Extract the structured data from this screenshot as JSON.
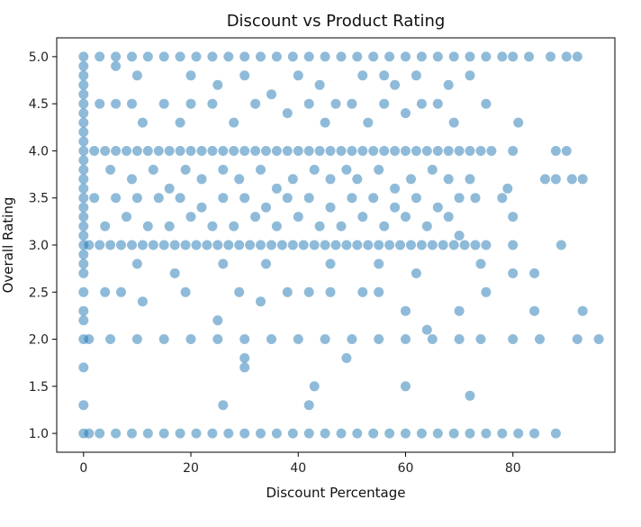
{
  "chart_data": {
    "type": "scatter",
    "title": "Discount vs Product Rating",
    "xlabel": "Discount Percentage",
    "ylabel": "Overall Rating",
    "xlim": [
      -5,
      99
    ],
    "ylim": [
      0.8,
      5.2
    ],
    "xticks": [
      0,
      20,
      40,
      60,
      80
    ],
    "yticks": [
      1.0,
      1.5,
      2.0,
      2.5,
      3.0,
      3.5,
      4.0,
      4.5,
      5.0
    ],
    "grid": false,
    "legend": "none",
    "marker_color": "#1f77b4",
    "marker_alpha": 0.5,
    "points": [
      [
        0,
        5.0
      ],
      [
        3,
        5.0
      ],
      [
        6,
        5.0
      ],
      [
        9,
        5.0
      ],
      [
        12,
        5.0
      ],
      [
        15,
        5.0
      ],
      [
        18,
        5.0
      ],
      [
        21,
        5.0
      ],
      [
        24,
        5.0
      ],
      [
        27,
        5.0
      ],
      [
        30,
        5.0
      ],
      [
        33,
        5.0
      ],
      [
        36,
        5.0
      ],
      [
        39,
        5.0
      ],
      [
        42,
        5.0
      ],
      [
        45,
        5.0
      ],
      [
        48,
        5.0
      ],
      [
        51,
        5.0
      ],
      [
        54,
        5.0
      ],
      [
        57,
        5.0
      ],
      [
        60,
        5.0
      ],
      [
        63,
        5.0
      ],
      [
        66,
        5.0
      ],
      [
        69,
        5.0
      ],
      [
        72,
        5.0
      ],
      [
        75,
        5.0
      ],
      [
        78,
        5.0
      ],
      [
        80,
        5.0
      ],
      [
        83,
        5.0
      ],
      [
        87,
        5.0
      ],
      [
        90,
        5.0
      ],
      [
        92,
        5.0
      ],
      [
        0,
        4.9
      ],
      [
        0,
        4.8
      ],
      [
        0,
        4.7
      ],
      [
        0,
        4.6
      ],
      [
        0,
        4.5
      ],
      [
        0,
        4.4
      ],
      [
        0,
        4.3
      ],
      [
        0,
        4.2
      ],
      [
        0,
        4.1
      ],
      [
        0,
        4.0
      ],
      [
        0,
        3.9
      ],
      [
        0,
        3.8
      ],
      [
        0,
        3.7
      ],
      [
        0,
        3.6
      ],
      [
        0,
        3.5
      ],
      [
        0,
        3.4
      ],
      [
        0,
        3.3
      ],
      [
        0,
        3.2
      ],
      [
        0,
        3.1
      ],
      [
        0,
        3.0
      ],
      [
        0,
        2.9
      ],
      [
        0,
        2.8
      ],
      [
        0,
        2.7
      ],
      [
        0,
        2.5
      ],
      [
        0,
        2.3
      ],
      [
        0,
        2.2
      ],
      [
        0,
        2.0
      ],
      [
        0,
        1.7
      ],
      [
        0,
        1.3
      ],
      [
        0,
        1.0
      ],
      [
        6,
        4.9
      ],
      [
        10,
        4.8
      ],
      [
        20,
        4.8
      ],
      [
        25,
        4.7
      ],
      [
        30,
        4.8
      ],
      [
        40,
        4.8
      ],
      [
        44,
        4.7
      ],
      [
        52,
        4.8
      ],
      [
        56,
        4.8
      ],
      [
        58,
        4.7
      ],
      [
        62,
        4.8
      ],
      [
        68,
        4.7
      ],
      [
        72,
        4.8
      ],
      [
        3,
        4.5
      ],
      [
        6,
        4.5
      ],
      [
        9,
        4.5
      ],
      [
        11,
        4.3
      ],
      [
        15,
        4.5
      ],
      [
        18,
        4.3
      ],
      [
        20,
        4.5
      ],
      [
        24,
        4.5
      ],
      [
        28,
        4.3
      ],
      [
        32,
        4.5
      ],
      [
        35,
        4.6
      ],
      [
        38,
        4.4
      ],
      [
        42,
        4.5
      ],
      [
        45,
        4.3
      ],
      [
        47,
        4.5
      ],
      [
        50,
        4.5
      ],
      [
        53,
        4.3
      ],
      [
        56,
        4.5
      ],
      [
        60,
        4.4
      ],
      [
        63,
        4.5
      ],
      [
        66,
        4.5
      ],
      [
        69,
        4.3
      ],
      [
        75,
        4.5
      ],
      [
        81,
        4.3
      ],
      [
        2,
        4.0
      ],
      [
        4,
        4.0
      ],
      [
        6,
        4.0
      ],
      [
        8,
        4.0
      ],
      [
        10,
        4.0
      ],
      [
        12,
        4.0
      ],
      [
        14,
        4.0
      ],
      [
        16,
        4.0
      ],
      [
        18,
        4.0
      ],
      [
        20,
        4.0
      ],
      [
        22,
        4.0
      ],
      [
        24,
        4.0
      ],
      [
        26,
        4.0
      ],
      [
        28,
        4.0
      ],
      [
        30,
        4.0
      ],
      [
        32,
        4.0
      ],
      [
        34,
        4.0
      ],
      [
        36,
        4.0
      ],
      [
        38,
        4.0
      ],
      [
        40,
        4.0
      ],
      [
        42,
        4.0
      ],
      [
        44,
        4.0
      ],
      [
        46,
        4.0
      ],
      [
        48,
        4.0
      ],
      [
        50,
        4.0
      ],
      [
        52,
        4.0
      ],
      [
        54,
        4.0
      ],
      [
        56,
        4.0
      ],
      [
        58,
        4.0
      ],
      [
        60,
        4.0
      ],
      [
        62,
        4.0
      ],
      [
        64,
        4.0
      ],
      [
        66,
        4.0
      ],
      [
        68,
        4.0
      ],
      [
        70,
        4.0
      ],
      [
        72,
        4.0
      ],
      [
        74,
        4.0
      ],
      [
        76,
        4.0
      ],
      [
        80,
        4.0
      ],
      [
        88,
        4.0
      ],
      [
        90,
        4.0
      ],
      [
        5,
        3.8
      ],
      [
        9,
        3.7
      ],
      [
        13,
        3.8
      ],
      [
        16,
        3.6
      ],
      [
        19,
        3.8
      ],
      [
        22,
        3.7
      ],
      [
        26,
        3.8
      ],
      [
        29,
        3.7
      ],
      [
        33,
        3.8
      ],
      [
        36,
        3.6
      ],
      [
        39,
        3.7
      ],
      [
        43,
        3.8
      ],
      [
        46,
        3.7
      ],
      [
        49,
        3.8
      ],
      [
        51,
        3.7
      ],
      [
        55,
        3.8
      ],
      [
        58,
        3.6
      ],
      [
        61,
        3.7
      ],
      [
        65,
        3.8
      ],
      [
        68,
        3.7
      ],
      [
        72,
        3.7
      ],
      [
        79,
        3.6
      ],
      [
        86,
        3.7
      ],
      [
        88,
        3.7
      ],
      [
        91,
        3.7
      ],
      [
        93,
        3.7
      ],
      [
        2,
        3.5
      ],
      [
        6,
        3.5
      ],
      [
        10,
        3.5
      ],
      [
        14,
        3.5
      ],
      [
        18,
        3.5
      ],
      [
        22,
        3.4
      ],
      [
        26,
        3.5
      ],
      [
        30,
        3.5
      ],
      [
        34,
        3.4
      ],
      [
        38,
        3.5
      ],
      [
        42,
        3.5
      ],
      [
        46,
        3.4
      ],
      [
        50,
        3.5
      ],
      [
        54,
        3.5
      ],
      [
        58,
        3.4
      ],
      [
        62,
        3.5
      ],
      [
        66,
        3.4
      ],
      [
        70,
        3.5
      ],
      [
        73,
        3.5
      ],
      [
        78,
        3.5
      ],
      [
        4,
        3.2
      ],
      [
        8,
        3.3
      ],
      [
        12,
        3.2
      ],
      [
        16,
        3.2
      ],
      [
        20,
        3.3
      ],
      [
        24,
        3.2
      ],
      [
        28,
        3.2
      ],
      [
        32,
        3.3
      ],
      [
        36,
        3.2
      ],
      [
        40,
        3.3
      ],
      [
        44,
        3.2
      ],
      [
        48,
        3.2
      ],
      [
        52,
        3.3
      ],
      [
        56,
        3.2
      ],
      [
        60,
        3.3
      ],
      [
        64,
        3.2
      ],
      [
        68,
        3.3
      ],
      [
        70,
        3.1
      ],
      [
        80,
        3.3
      ],
      [
        1,
        3.0
      ],
      [
        3,
        3.0
      ],
      [
        5,
        3.0
      ],
      [
        7,
        3.0
      ],
      [
        9,
        3.0
      ],
      [
        11,
        3.0
      ],
      [
        13,
        3.0
      ],
      [
        15,
        3.0
      ],
      [
        17,
        3.0
      ],
      [
        19,
        3.0
      ],
      [
        21,
        3.0
      ],
      [
        23,
        3.0
      ],
      [
        25,
        3.0
      ],
      [
        27,
        3.0
      ],
      [
        29,
        3.0
      ],
      [
        31,
        3.0
      ],
      [
        33,
        3.0
      ],
      [
        35,
        3.0
      ],
      [
        37,
        3.0
      ],
      [
        39,
        3.0
      ],
      [
        41,
        3.0
      ],
      [
        43,
        3.0
      ],
      [
        45,
        3.0
      ],
      [
        47,
        3.0
      ],
      [
        49,
        3.0
      ],
      [
        51,
        3.0
      ],
      [
        53,
        3.0
      ],
      [
        55,
        3.0
      ],
      [
        57,
        3.0
      ],
      [
        59,
        3.0
      ],
      [
        61,
        3.0
      ],
      [
        63,
        3.0
      ],
      [
        65,
        3.0
      ],
      [
        67,
        3.0
      ],
      [
        69,
        3.0
      ],
      [
        71,
        3.0
      ],
      [
        73,
        3.0
      ],
      [
        75,
        3.0
      ],
      [
        80,
        3.0
      ],
      [
        89,
        3.0
      ],
      [
        10,
        2.8
      ],
      [
        17,
        2.7
      ],
      [
        26,
        2.8
      ],
      [
        34,
        2.8
      ],
      [
        46,
        2.8
      ],
      [
        55,
        2.8
      ],
      [
        62,
        2.7
      ],
      [
        74,
        2.8
      ],
      [
        80,
        2.7
      ],
      [
        84,
        2.7
      ],
      [
        4,
        2.5
      ],
      [
        7,
        2.5
      ],
      [
        11,
        2.4
      ],
      [
        19,
        2.5
      ],
      [
        25,
        2.2
      ],
      [
        29,
        2.5
      ],
      [
        33,
        2.4
      ],
      [
        38,
        2.5
      ],
      [
        42,
        2.5
      ],
      [
        46,
        2.5
      ],
      [
        52,
        2.5
      ],
      [
        55,
        2.5
      ],
      [
        60,
        2.3
      ],
      [
        64,
        2.1
      ],
      [
        70,
        2.3
      ],
      [
        75,
        2.5
      ],
      [
        84,
        2.3
      ],
      [
        93,
        2.3
      ],
      [
        1,
        2.0
      ],
      [
        5,
        2.0
      ],
      [
        10,
        2.0
      ],
      [
        15,
        2.0
      ],
      [
        20,
        2.0
      ],
      [
        25,
        2.0
      ],
      [
        30,
        2.0
      ],
      [
        35,
        2.0
      ],
      [
        40,
        2.0
      ],
      [
        45,
        2.0
      ],
      [
        50,
        2.0
      ],
      [
        55,
        2.0
      ],
      [
        60,
        2.0
      ],
      [
        65,
        2.0
      ],
      [
        70,
        2.0
      ],
      [
        74,
        2.0
      ],
      [
        80,
        2.0
      ],
      [
        85,
        2.0
      ],
      [
        92,
        2.0
      ],
      [
        96,
        2.0
      ],
      [
        30,
        1.8
      ],
      [
        30,
        1.7
      ],
      [
        49,
        1.8
      ],
      [
        60,
        1.5
      ],
      [
        43,
        1.5
      ],
      [
        42,
        1.3
      ],
      [
        26,
        1.3
      ],
      [
        72,
        1.4
      ],
      [
        1,
        1.0
      ],
      [
        3,
        1.0
      ],
      [
        6,
        1.0
      ],
      [
        9,
        1.0
      ],
      [
        12,
        1.0
      ],
      [
        15,
        1.0
      ],
      [
        18,
        1.0
      ],
      [
        21,
        1.0
      ],
      [
        24,
        1.0
      ],
      [
        27,
        1.0
      ],
      [
        30,
        1.0
      ],
      [
        33,
        1.0
      ],
      [
        36,
        1.0
      ],
      [
        39,
        1.0
      ],
      [
        42,
        1.0
      ],
      [
        45,
        1.0
      ],
      [
        48,
        1.0
      ],
      [
        51,
        1.0
      ],
      [
        54,
        1.0
      ],
      [
        57,
        1.0
      ],
      [
        60,
        1.0
      ],
      [
        63,
        1.0
      ],
      [
        66,
        1.0
      ],
      [
        69,
        1.0
      ],
      [
        72,
        1.0
      ],
      [
        75,
        1.0
      ],
      [
        78,
        1.0
      ],
      [
        81,
        1.0
      ],
      [
        84,
        1.0
      ],
      [
        88,
        1.0
      ]
    ]
  }
}
